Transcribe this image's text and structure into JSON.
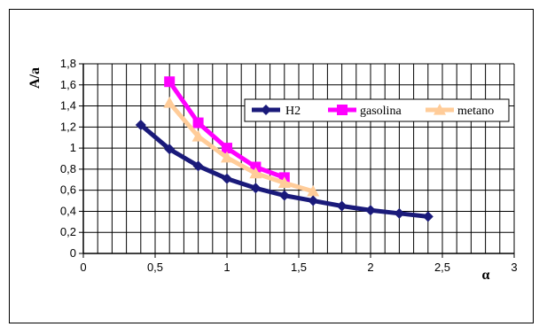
{
  "chart_data": {
    "type": "line",
    "xlabel": "α",
    "ylabel": "A/a",
    "xlim": [
      0,
      3
    ],
    "ylim": [
      0,
      1.8
    ],
    "x_ticks": [
      "0",
      "0,5",
      "1",
      "1,5",
      "2",
      "2,5",
      "3"
    ],
    "y_ticks": [
      "0",
      "0,2",
      "0,4",
      "0,6",
      "0,8",
      "1",
      "1,2",
      "1,4",
      "1,6",
      "1,8"
    ],
    "grid": true,
    "legend_position": "top-right",
    "series": [
      {
        "name": "H2",
        "color": "#1a1a7a",
        "marker": "diamond",
        "points": [
          [
            0.4,
            1.22
          ],
          [
            0.6,
            0.99
          ],
          [
            0.8,
            0.83
          ],
          [
            1.0,
            0.71
          ],
          [
            1.2,
            0.62
          ],
          [
            1.4,
            0.55
          ],
          [
            1.6,
            0.5
          ],
          [
            1.8,
            0.45
          ],
          [
            2.0,
            0.41
          ],
          [
            2.2,
            0.38
          ],
          [
            2.4,
            0.35
          ]
        ]
      },
      {
        "name": "gasolina",
        "color": "#ff00ff",
        "marker": "square",
        "points": [
          [
            0.6,
            1.63
          ],
          [
            0.8,
            1.24
          ],
          [
            1.0,
            1.0
          ],
          [
            1.2,
            0.82
          ],
          [
            1.4,
            0.72
          ]
        ]
      },
      {
        "name": "metano",
        "color": "#ffcc99",
        "marker": "triangle",
        "points": [
          [
            0.6,
            1.43
          ],
          [
            0.8,
            1.11
          ],
          [
            1.0,
            0.91
          ],
          [
            1.2,
            0.76
          ],
          [
            1.4,
            0.67
          ],
          [
            1.6,
            0.59
          ]
        ]
      }
    ]
  }
}
